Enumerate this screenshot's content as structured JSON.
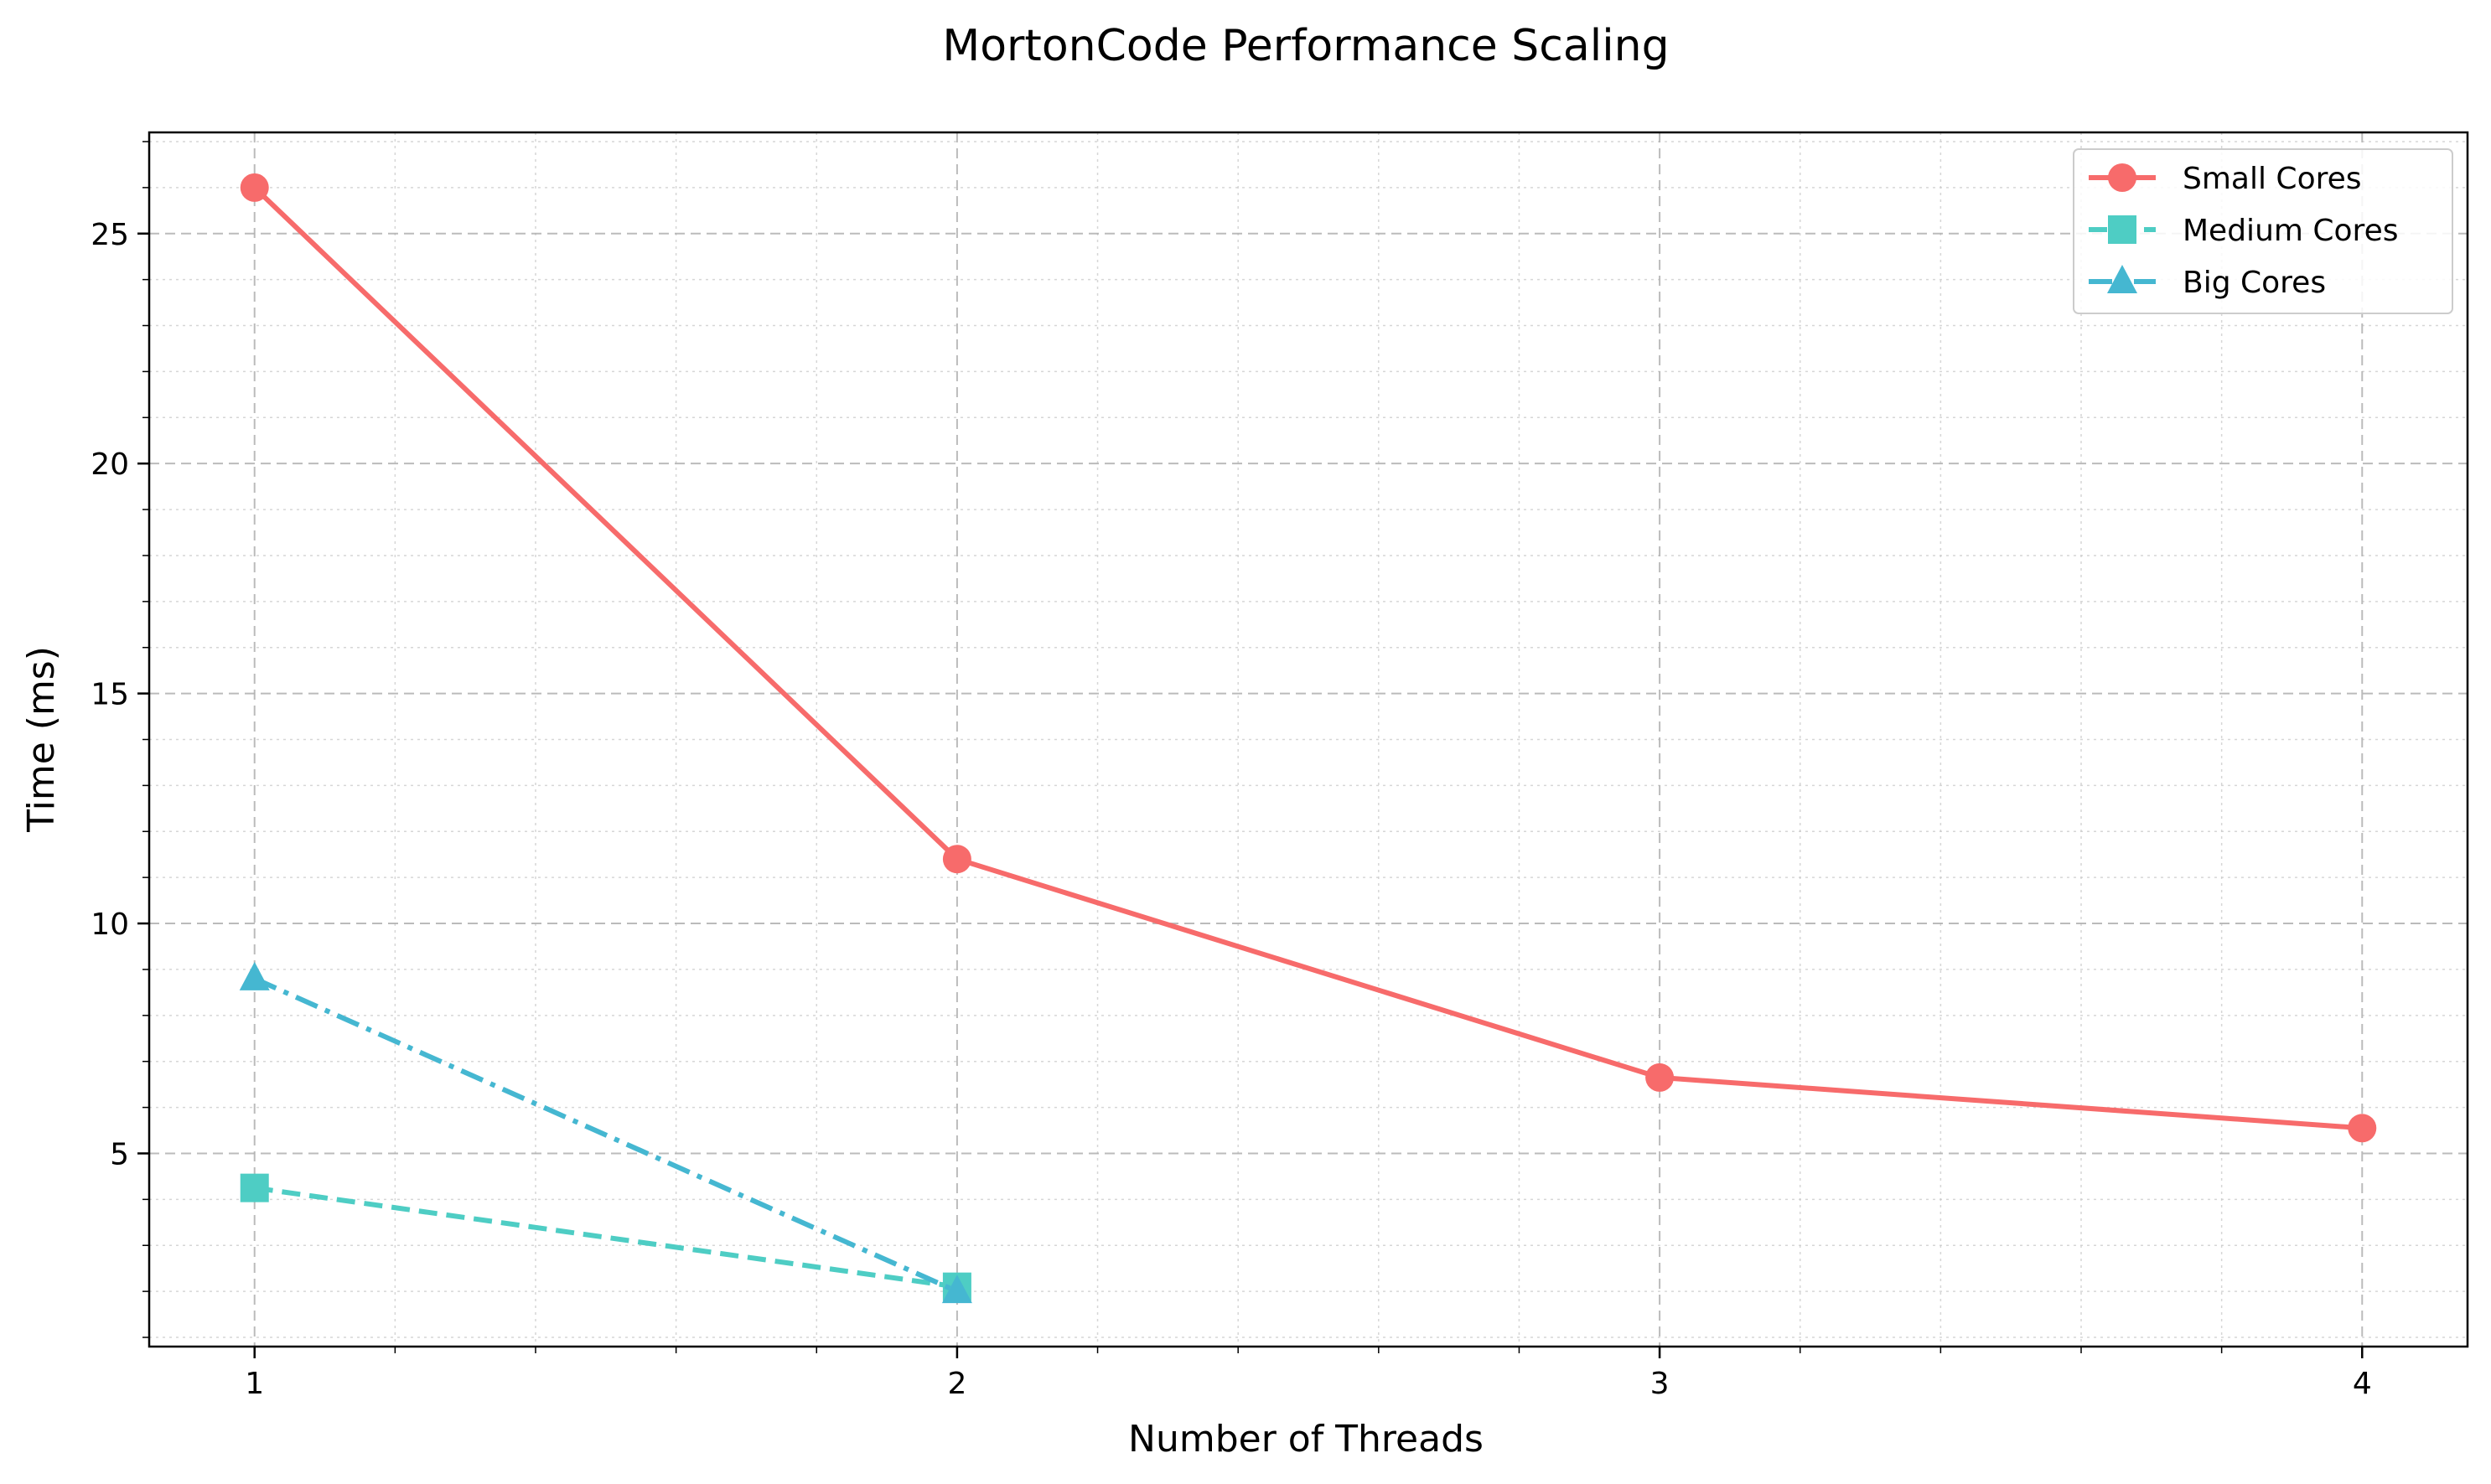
{
  "chart_data": {
    "type": "line",
    "title": "MortonCode Performance Scaling",
    "xlabel": "Number of Threads",
    "ylabel": "Time (ms)",
    "x_ticks": [
      1,
      2,
      3,
      4
    ],
    "y_ticks": [
      5,
      10,
      15,
      20,
      25
    ],
    "xlim": [
      0.85,
      4.15
    ],
    "ylim": [
      0.8,
      27.2
    ],
    "grid": "major dashed, minor dotted",
    "legend_position": "top-right",
    "series": [
      {
        "name": "Small Cores",
        "color": "#f76b6b",
        "line_style": "solid",
        "marker": "circle",
        "x": [
          1,
          2,
          3,
          4
        ],
        "y": [
          26.0,
          11.4,
          6.65,
          5.55
        ]
      },
      {
        "name": "Medium Cores",
        "color": "#4ecdc4",
        "line_style": "dashed",
        "marker": "square",
        "x": [
          1,
          2
        ],
        "y": [
          4.25,
          2.1
        ]
      },
      {
        "name": "Big Cores",
        "color": "#45b7d1",
        "line_style": "dashdot",
        "marker": "triangle",
        "x": [
          1,
          2
        ],
        "y": [
          8.8,
          2.0
        ]
      }
    ]
  }
}
